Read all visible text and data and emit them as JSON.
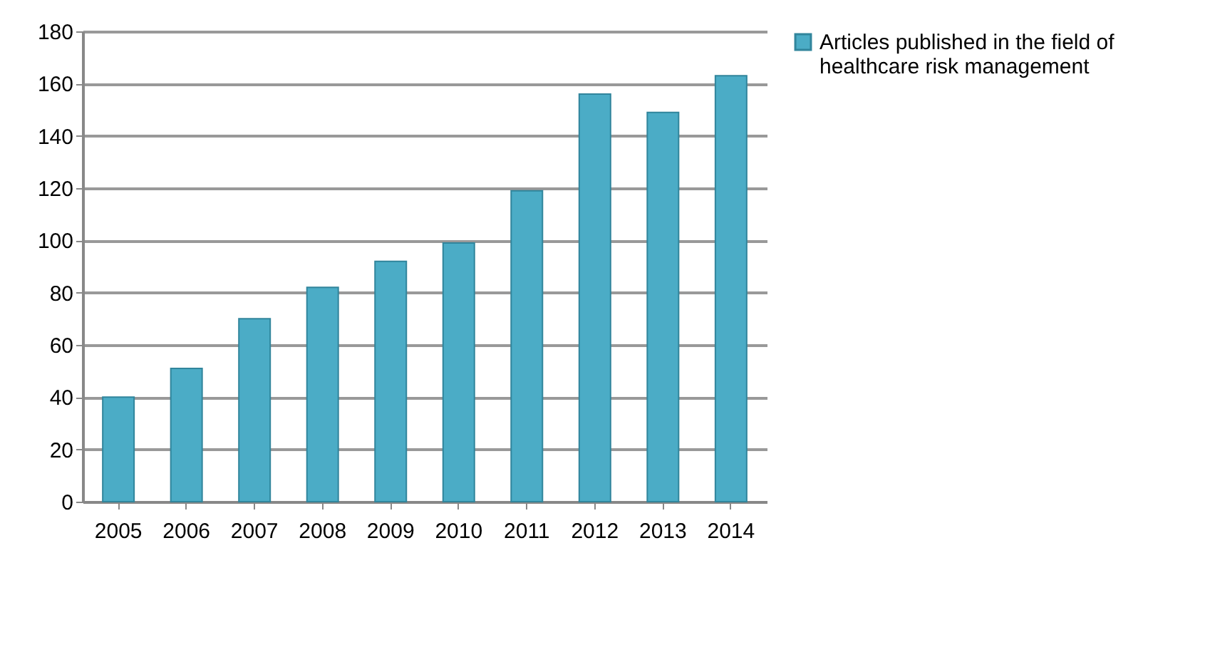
{
  "chart_data": {
    "type": "bar",
    "categories": [
      "2005",
      "2006",
      "2007",
      "2008",
      "2009",
      "2010",
      "2011",
      "2012",
      "2013",
      "2014"
    ],
    "series": [
      {
        "name": "Articles published in the field of healthcare risk management",
        "color": "#4bacc6",
        "values": [
          40,
          51,
          70,
          82,
          92,
          99,
          119,
          156,
          149,
          163
        ]
      }
    ],
    "ylim": [
      0,
      180
    ],
    "yticks": [
      0,
      20,
      40,
      60,
      80,
      100,
      120,
      140,
      160,
      180
    ],
    "grid": "y",
    "legend": "right"
  }
}
